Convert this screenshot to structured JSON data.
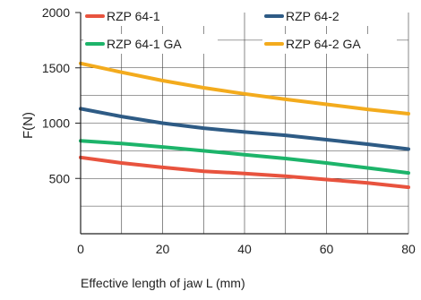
{
  "chart_data": {
    "type": "line",
    "title": "",
    "xlabel": "Effective length of jaw L (mm)",
    "ylabel": "F(N)",
    "xlim": [
      0,
      80
    ],
    "ylim": [
      0,
      2000
    ],
    "x_ticks": [
      "0",
      "20",
      "40",
      "60",
      "80"
    ],
    "y_ticks": [
      "500",
      "1000",
      "1500",
      "2000"
    ],
    "grid": true,
    "legend_position": "top",
    "series": [
      {
        "name": "RZP 64-1",
        "color": "#e8533e",
        "x": [
          0,
          10,
          20,
          30,
          40,
          50,
          60,
          70,
          80
        ],
        "y": [
          690,
          640,
          600,
          565,
          545,
          520,
          490,
          460,
          420
        ]
      },
      {
        "name": "RZP 64-2",
        "color": "#2e5b85",
        "x": [
          0,
          10,
          20,
          30,
          40,
          50,
          60,
          70,
          80
        ],
        "y": [
          1130,
          1060,
          1000,
          955,
          920,
          890,
          850,
          810,
          765
        ]
      },
      {
        "name": "RZP 64-1 GA",
        "color": "#1db46a",
        "x": [
          0,
          10,
          20,
          30,
          40,
          50,
          60,
          70,
          80
        ],
        "y": [
          840,
          815,
          785,
          750,
          715,
          680,
          640,
          595,
          550
        ]
      },
      {
        "name": "RZP 64-2 GA",
        "color": "#f3ab1d",
        "x": [
          0,
          10,
          20,
          30,
          40,
          50,
          60,
          70,
          80
        ],
        "y": [
          1540,
          1460,
          1385,
          1320,
          1265,
          1215,
          1170,
          1125,
          1085
        ]
      }
    ]
  }
}
